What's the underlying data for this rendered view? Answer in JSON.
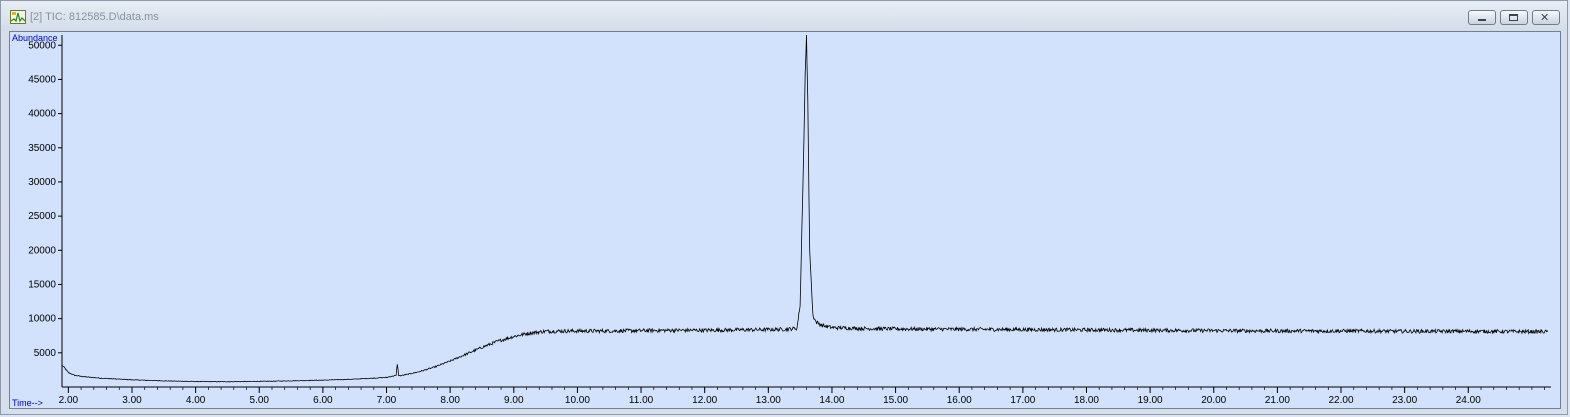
{
  "window": {
    "title": "[2] TIC: 812585.D\\data.ms",
    "close_glyph": "✕"
  },
  "icons": {
    "app": "chromatogram-app-icon",
    "minimize": "minimize-icon",
    "maximize": "maximize-icon",
    "close": "close-icon"
  },
  "chart_data": {
    "type": "line",
    "ylabel": "Abundance",
    "xlabel": "Time-->",
    "xlim": [
      1.9,
      25.3
    ],
    "ylim": [
      0,
      51500
    ],
    "x_ticks": [
      "2.00",
      "3.00",
      "4.00",
      "5.00",
      "6.00",
      "7.00",
      "8.00",
      "9.00",
      "10.00",
      "11.00",
      "12.00",
      "13.00",
      "14.00",
      "15.00",
      "16.00",
      "17.00",
      "18.00",
      "19.00",
      "20.00",
      "21.00",
      "22.00",
      "23.00",
      "24.00"
    ],
    "y_ticks": [
      "5000",
      "10000",
      "15000",
      "20000",
      "25000",
      "30000",
      "35000",
      "40000",
      "45000",
      "50000"
    ],
    "grid": false,
    "series": [
      {
        "x": [
          1.9,
          1.95,
          2.0,
          2.1,
          2.25,
          2.5,
          3.0,
          3.5,
          4.0,
          4.5,
          5.0,
          5.5,
          6.0,
          6.5,
          7.0,
          7.15,
          7.17,
          7.19,
          7.22,
          7.35,
          7.5,
          7.75,
          8.0,
          8.25,
          8.5,
          8.75,
          9.0,
          9.25,
          9.5,
          10.0,
          10.5,
          11.0,
          11.5,
          12.0,
          12.5,
          13.0,
          13.3,
          13.45,
          13.5,
          13.55,
          13.58,
          13.6,
          13.62,
          13.65,
          13.7,
          13.75,
          13.85,
          14.0,
          14.5,
          15.0,
          16.0,
          17.0,
          18.0,
          19.0,
          20.0,
          21.0,
          22.0,
          23.0,
          24.0,
          25.0,
          25.25
        ],
        "y": [
          3200,
          2700,
          2100,
          1700,
          1500,
          1300,
          1050,
          900,
          800,
          780,
          820,
          900,
          1000,
          1150,
          1400,
          1700,
          3400,
          1700,
          1650,
          1900,
          2200,
          2900,
          3800,
          4800,
          5800,
          6700,
          7400,
          7900,
          8150,
          8200,
          8200,
          8250,
          8300,
          8300,
          8350,
          8400,
          8450,
          8600,
          12000,
          32000,
          46000,
          51500,
          42000,
          20000,
          10500,
          9500,
          9000,
          8700,
          8550,
          8500,
          8450,
          8400,
          8350,
          8300,
          8250,
          8200,
          8200,
          8150,
          8150,
          8100,
          8100
        ]
      }
    ]
  }
}
